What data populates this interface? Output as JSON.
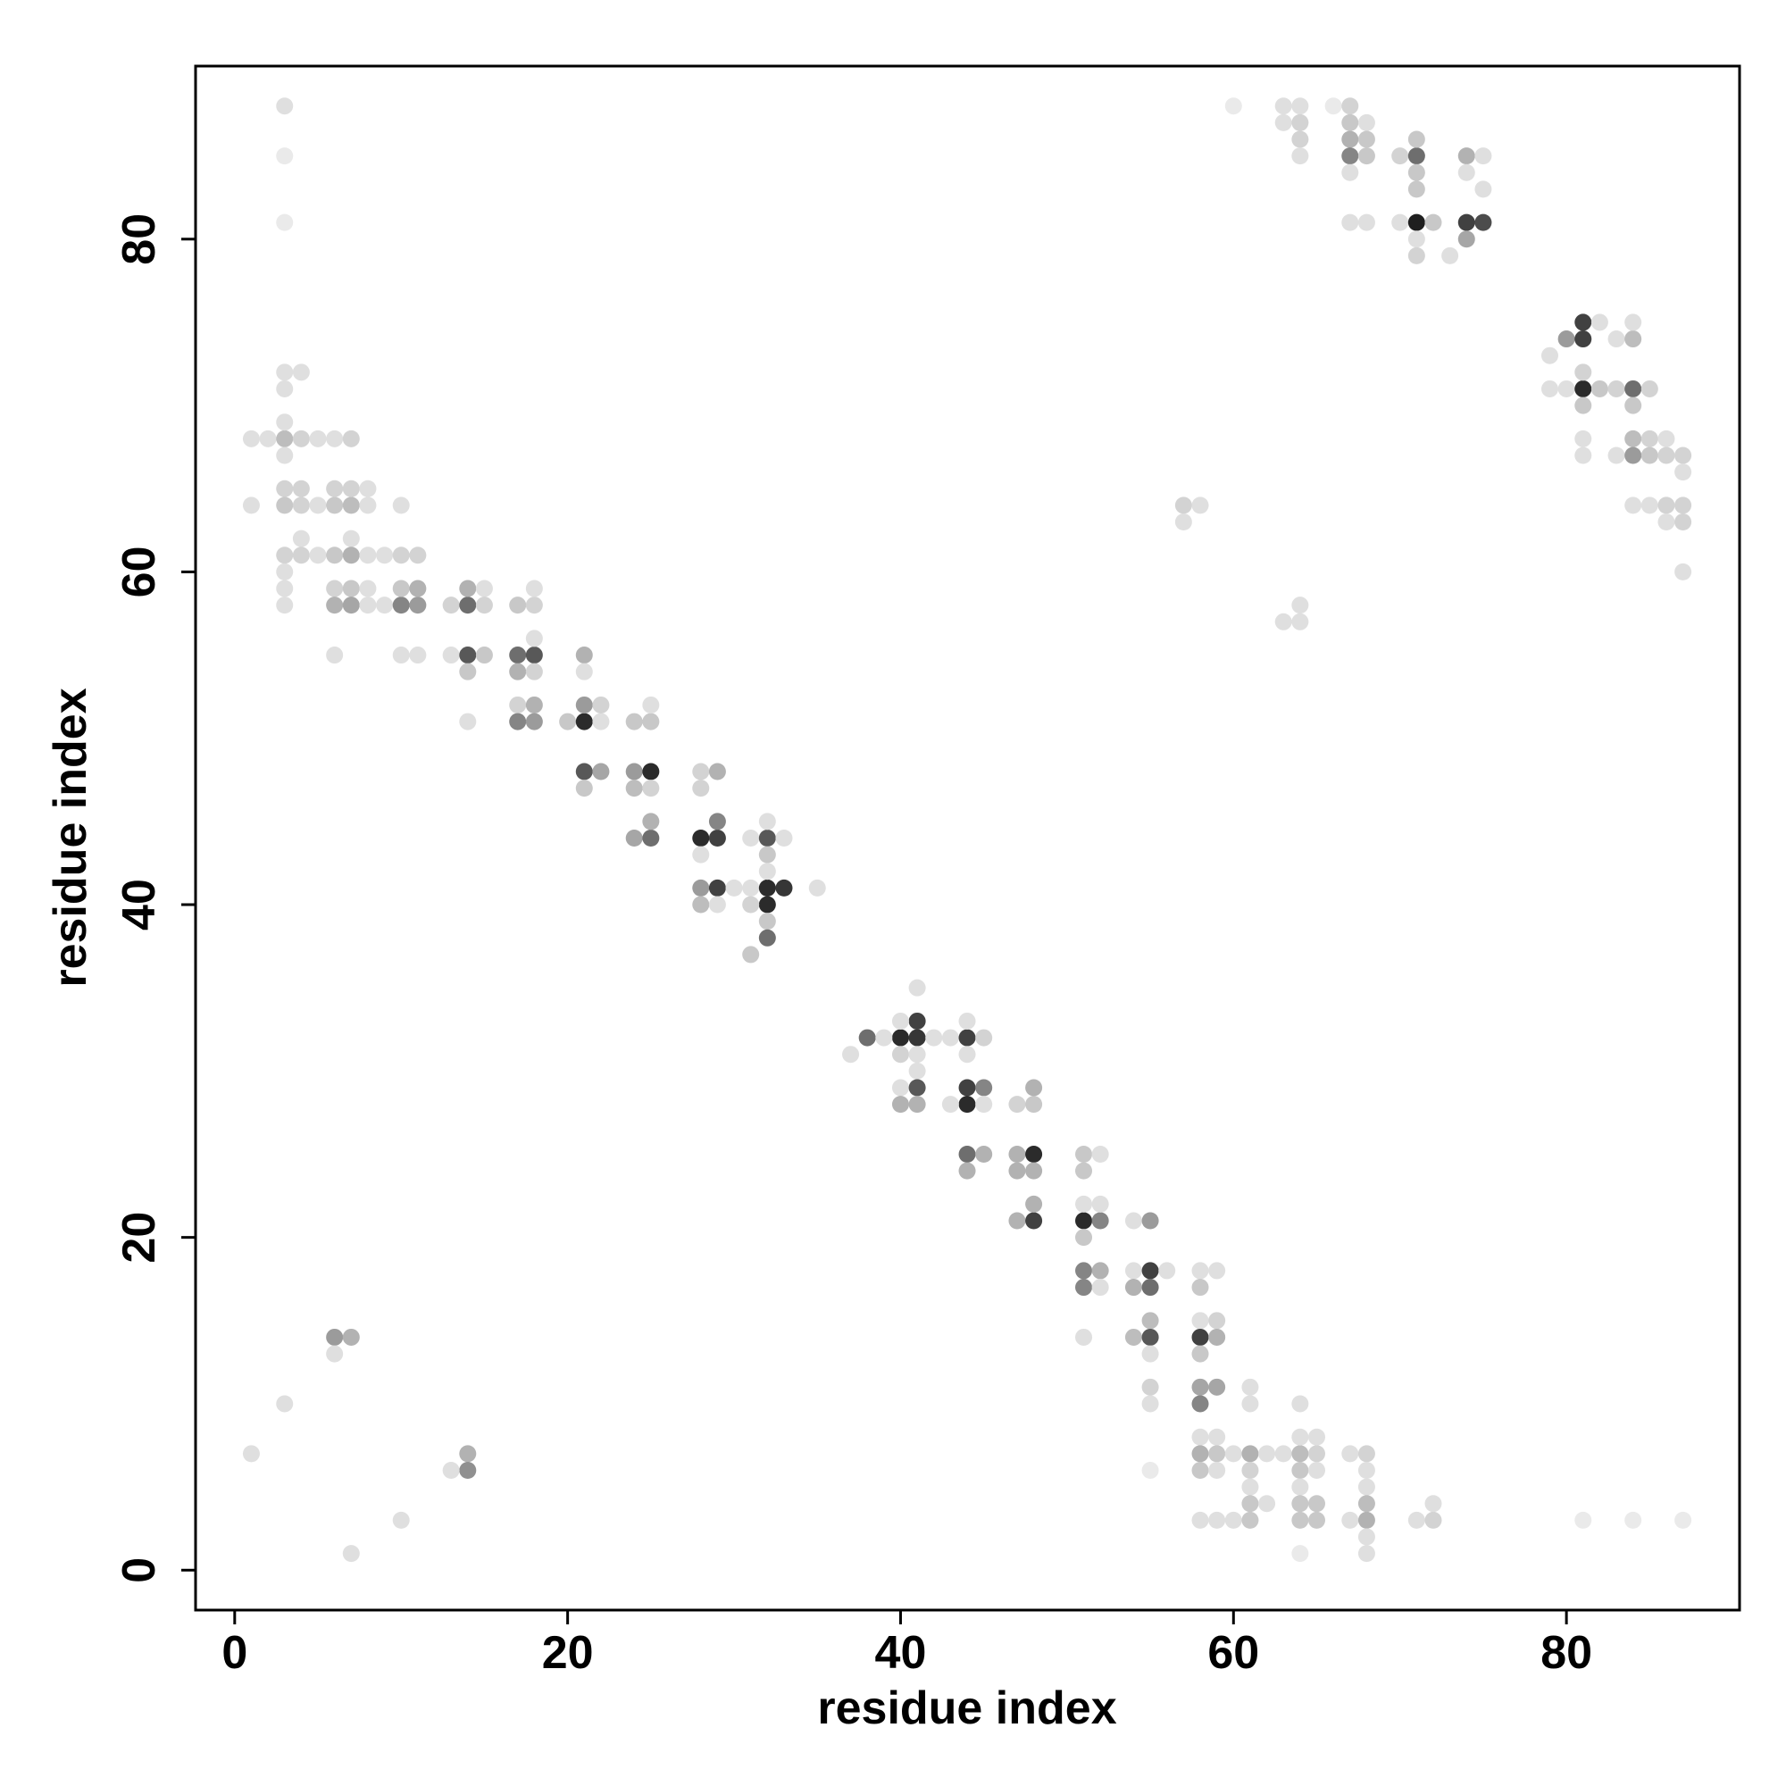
{
  "chart_data": {
    "type": "scatter",
    "xlabel": "residue index",
    "ylabel": "residue index",
    "xlim": [
      -2.35,
      90.4
    ],
    "ylim": [
      -2.4,
      90.4
    ],
    "xticks": [
      0,
      20,
      40,
      60,
      80
    ],
    "yticks": [
      0,
      20,
      40,
      60,
      80
    ],
    "color": "#000000",
    "x": [
      1,
      2,
      3,
      4,
      5,
      6,
      7,
      1,
      3,
      4,
      3,
      3,
      3,
      3,
      4,
      3,
      4,
      5,
      6,
      7,
      6,
      7,
      8,
      8,
      7,
      4,
      3,
      4,
      5,
      6,
      7,
      8,
      9,
      10,
      11,
      3,
      3,
      3,
      6,
      7,
      8,
      6,
      7,
      8,
      9,
      10,
      11,
      10,
      11,
      10,
      6,
      10,
      11,
      13,
      14,
      14,
      15,
      15,
      17,
      18,
      18,
      13,
      14,
      15,
      14,
      17,
      18,
      17,
      18,
      18,
      14,
      17,
      18,
      17,
      18,
      20,
      21,
      22,
      21,
      22,
      21,
      21,
      24,
      25,
      25,
      21,
      22,
      21,
      24,
      25,
      24,
      25,
      28,
      29,
      28,
      24,
      25,
      25,
      28,
      29,
      29,
      28,
      31,
      32,
      32,
      33,
      32,
      28,
      29,
      28,
      29,
      30,
      31,
      32,
      33,
      32,
      31,
      32,
      32,
      31,
      35,
      32,
      37,
      38,
      40,
      41,
      41,
      40,
      41,
      39,
      42,
      40,
      41,
      41,
      40,
      41,
      40,
      41,
      43,
      44,
      45,
      44,
      44,
      44,
      45,
      44,
      43,
      45,
      47,
      48,
      48,
      44,
      45,
      44,
      47,
      48,
      47,
      48,
      51,
      52,
      51,
      47,
      48,
      48,
      51,
      52,
      51,
      52,
      51,
      54,
      55,
      51,
      52,
      51,
      52,
      54,
      55,
      56,
      54,
      55,
      55,
      54,
      55,
      55,
      51,
      58,
      59,
      58,
      58,
      59,
      58,
      59,
      58,
      55,
      55,
      58,
      59,
      58,
      61,
      61,
      64,
      58,
      59,
      58,
      59,
      60,
      61,
      62,
      63,
      64,
      65,
      58,
      59,
      61,
      64,
      65,
      61,
      64,
      61,
      62,
      64,
      65,
      58,
      59,
      60,
      61,
      64,
      65,
      67,
      68,
      67,
      68,
      68,
      68,
      68,
      68,
      68,
      71,
      72,
      72,
      64,
      55,
      81,
      84,
      87,
      65,
      64,
      6,
      7,
      6,
      3,
      1,
      14,
      14,
      13,
      10,
      7,
      57,
      58,
      57,
      63,
      64,
      64,
      3,
      3,
      3,
      60,
      63,
      64,
      66,
      67,
      63,
      64,
      67,
      68,
      64,
      67,
      68,
      64,
      67,
      68,
      70,
      71,
      71,
      74,
      75,
      74,
      71,
      75,
      71,
      67,
      67,
      68,
      70,
      71,
      72,
      74,
      75,
      74,
      71,
      71,
      73,
      79,
      80,
      81,
      81,
      82,
      83,
      84,
      84,
      79,
      80,
      81,
      82,
      83,
      84,
      85,
      81,
      81,
      84,
      83,
      81,
      81,
      84,
      85,
      86,
      84,
      85,
      86,
      87,
      87,
      84,
      85,
      86,
      87,
      86,
      87,
      87
    ],
    "y": [
      68,
      68,
      68,
      68,
      68,
      68,
      68,
      64,
      72,
      72,
      71,
      69,
      67,
      65,
      65,
      64,
      64,
      64,
      64,
      64,
      65,
      65,
      65,
      64,
      62,
      62,
      61,
      61,
      61,
      61,
      61,
      61,
      61,
      61,
      61,
      60,
      59,
      58,
      59,
      59,
      59,
      58,
      58,
      58,
      58,
      58,
      58,
      59,
      59,
      64,
      55,
      55,
      55,
      58,
      58,
      59,
      59,
      58,
      58,
      58,
      59,
      55,
      55,
      55,
      54,
      55,
      55,
      54,
      54,
      56,
      51,
      52,
      52,
      51,
      51,
      51,
      51,
      51,
      52,
      52,
      55,
      54,
      51,
      51,
      52,
      48,
      48,
      47,
      48,
      48,
      47,
      47,
      48,
      48,
      47,
      44,
      44,
      45,
      44,
      44,
      45,
      43,
      44,
      44,
      45,
      44,
      43,
      41,
      41,
      40,
      40,
      41,
      41,
      41,
      41,
      40,
      40,
      39,
      38,
      37,
      41,
      42,
      31,
      32,
      32,
      32,
      33,
      33,
      35,
      32,
      32,
      31,
      31,
      30,
      29,
      29,
      28,
      28,
      32,
      32,
      32,
      33,
      31,
      29,
      29,
      28,
      28,
      28,
      28,
      28,
      29,
      25,
      25,
      24,
      25,
      25,
      24,
      24,
      25,
      25,
      24,
      21,
      21,
      22,
      21,
      21,
      22,
      22,
      20,
      21,
      21,
      18,
      18,
      17,
      17,
      18,
      18,
      18,
      17,
      17,
      15,
      14,
      14,
      13,
      14,
      18,
      18,
      17,
      15,
      15,
      14,
      14,
      13,
      11,
      10,
      11,
      11,
      10,
      11,
      10,
      10,
      8,
      8,
      7,
      7,
      7,
      7,
      7,
      7,
      7,
      7,
      6,
      6,
      6,
      6,
      6,
      5,
      5,
      4,
      4,
      4,
      4,
      3,
      3,
      3,
      3,
      3,
      3,
      3,
      3,
      7,
      7,
      6,
      5,
      4,
      2,
      1,
      3,
      3,
      4,
      1,
      6,
      3,
      3,
      3,
      8,
      8,
      14,
      14,
      13,
      10,
      7,
      7,
      6,
      6,
      3,
      1,
      64,
      64,
      63,
      57,
      58,
      57,
      88,
      85,
      81,
      88,
      88,
      88,
      88,
      88,
      87,
      87,
      87,
      87,
      86,
      86,
      86,
      85,
      85,
      85,
      85,
      85,
      86,
      85,
      85,
      84,
      84,
      83,
      83,
      84,
      81,
      81,
      81,
      81,
      81,
      81,
      81,
      80,
      80,
      79,
      79,
      73,
      74,
      74,
      75,
      75,
      74,
      74,
      75,
      71,
      71,
      71,
      71,
      71,
      71,
      71,
      72,
      70,
      70,
      67,
      68,
      67,
      68,
      68,
      68,
      67,
      67,
      67,
      67,
      66,
      64,
      64,
      64,
      64,
      63,
      63,
      60
    ],
    "intensity": [
      0.1,
      0.1,
      0.25,
      0.15,
      0.1,
      0.1,
      0.15,
      0.1,
      0.1,
      0.1,
      0.1,
      0.1,
      0.1,
      0.15,
      0.15,
      0.2,
      0.15,
      0.1,
      0.2,
      0.25,
      0.15,
      0.15,
      0.1,
      0.1,
      0.1,
      0.1,
      0.15,
      0.15,
      0.1,
      0.2,
      0.3,
      0.1,
      0.1,
      0.15,
      0.15,
      0.1,
      0.1,
      0.1,
      0.15,
      0.2,
      0.1,
      0.3,
      0.35,
      0.1,
      0.1,
      0.5,
      0.4,
      0.2,
      0.3,
      0.1,
      0.1,
      0.1,
      0.1,
      0.15,
      0.6,
      0.3,
      0.1,
      0.15,
      0.2,
      0.15,
      0.1,
      0.1,
      0.7,
      0.2,
      0.2,
      0.6,
      0.7,
      0.3,
      0.15,
      0.1,
      0.1,
      0.15,
      0.3,
      0.5,
      0.4,
      0.2,
      0.9,
      0.1,
      0.4,
      0.15,
      0.3,
      0.1,
      0.2,
      0.2,
      0.1,
      0.7,
      0.35,
      0.2,
      0.4,
      0.9,
      0.25,
      0.15,
      0.15,
      0.3,
      0.15,
      0.35,
      0.6,
      0.3,
      0.9,
      0.8,
      0.5,
      0.1,
      0.1,
      0.7,
      0.1,
      0.1,
      0.2,
      0.4,
      0.8,
      0.25,
      0.1,
      0.1,
      0.1,
      0.9,
      0.85,
      0.9,
      0.15,
      0.2,
      0.6,
      0.2,
      0.1,
      0.1,
      0.1,
      0.6,
      0.9,
      0.85,
      0.8,
      0.1,
      0.1,
      0.1,
      0.1,
      0.15,
      0.1,
      0.1,
      0.1,
      0.7,
      0.3,
      0.3,
      0.1,
      0.8,
      0.15,
      0.1,
      0.1,
      0.8,
      0.5,
      0.9,
      0.1,
      0.1,
      0.15,
      0.2,
      0.3,
      0.6,
      0.3,
      0.3,
      0.3,
      0.9,
      0.3,
      0.3,
      0.2,
      0.1,
      0.2,
      0.3,
      0.8,
      0.3,
      0.9,
      0.5,
      0.1,
      0.1,
      0.2,
      0.1,
      0.4,
      0.5,
      0.3,
      0.5,
      0.1,
      0.1,
      0.8,
      0.1,
      0.3,
      0.6,
      0.25,
      0.25,
      0.7,
      0.1,
      0.1,
      0.1,
      0.1,
      0.2,
      0.1,
      0.15,
      0.8,
      0.3,
      0.2,
      0.15,
      0.1,
      0.35,
      0.35,
      0.5,
      0.1,
      0.1,
      0.1,
      0.1,
      0.1,
      0.3,
      0.2,
      0.1,
      0.3,
      0.1,
      0.1,
      0.25,
      0.15,
      0.2,
      0.1,
      0.15,
      0.2,
      0.1,
      0.1,
      0.1,
      0.2,
      0.1,
      0.2,
      0.2,
      0.1,
      0.1,
      0.1,
      0.2,
      0.2,
      0.2,
      0.1,
      0.3,
      0.1,
      0.15,
      0.1,
      0.1,
      0.25,
      0.1,
      0.1,
      0.1,
      0.15,
      0.1,
      0.05,
      0.05,
      0.05,
      0.05,
      0.05,
      0.1,
      0.1,
      0.4,
      0.3,
      0.1,
      0.1,
      0.1,
      0.3,
      0.45,
      0.1,
      0.1,
      0.1,
      0.15,
      0.1,
      0.1,
      0.1,
      0.1,
      0.1,
      0.1,
      0.05,
      0.05,
      0.05,
      0.1,
      0.1,
      0.05,
      0.15,
      0.1,
      0.15,
      0.2,
      0.1,
      0.15,
      0.3,
      0.2,
      0.1,
      0.5,
      0.2,
      0.15,
      0.6,
      0.2,
      0.3,
      0.1,
      0.1,
      0.2,
      0.1,
      0.2,
      0.1,
      0.1,
      0.1,
      0.1,
      0.95,
      0.2,
      0.8,
      0.75,
      0.35,
      0.1,
      0.15,
      0.1,
      0.1,
      0.4,
      0.8,
      0.8,
      0.1,
      0.1,
      0.25,
      0.1,
      0.1,
      0.1,
      0.9,
      0.2,
      0.15,
      0.6,
      0.15,
      0.15,
      0.2,
      0.2,
      0.1,
      0.1,
      0.1,
      0.25,
      0.15,
      0.1,
      0.4,
      0.2,
      0.15,
      0.15,
      0.1,
      0.1,
      0.1,
      0.15,
      0.15,
      0.1,
      0.15,
      0.1
    ]
  }
}
